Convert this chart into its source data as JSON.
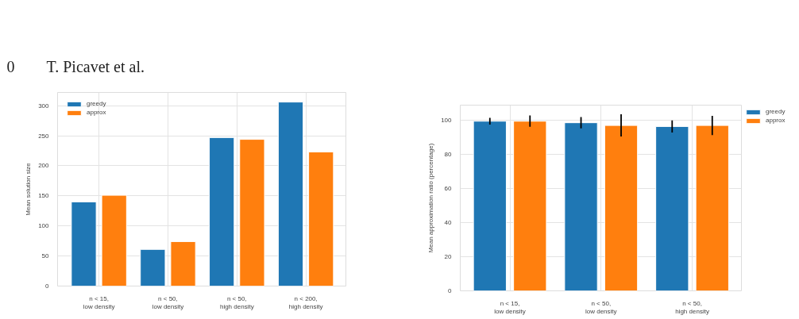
{
  "chart_data": [
    {
      "type": "bar",
      "annotations": [
        "0        T. Picavet et al."
      ],
      "ylabel": "Mean solution size",
      "categories": [
        "n < 15,\nlow density",
        "n < 50,\nlow density",
        "n < 50,\nhigh density",
        "n < 200,\nhigh density"
      ],
      "series": [
        {
          "name": "greedy",
          "color": "#1f77b4",
          "values": [
            140,
            61,
            247,
            306
          ]
        },
        {
          "name": "approx",
          "color": "#ff7f0e",
          "values": [
            151,
            74,
            244,
            223
          ]
        }
      ],
      "ylim": [
        0,
        322
      ],
      "yticks": [
        0,
        50,
        100,
        150,
        200,
        250,
        300
      ],
      "grid": true,
      "legend": "top left"
    },
    {
      "type": "bar",
      "ylabel": "Mean approximation ratio (percentage)",
      "categories": [
        "n < 15,\nlow density",
        "n < 50,\nlow density",
        "n < 50,\nhigh density"
      ],
      "series": [
        {
          "name": "greedy",
          "color": "#1f77b4",
          "values": [
            99.4,
            98.5,
            96.3
          ],
          "errors": [
            2,
            3.3,
            3.5
          ]
        },
        {
          "name": "approx",
          "color": "#ff7f0e",
          "values": [
            99.4,
            96.9,
            96.9
          ],
          "errors": [
            3.3,
            6.5,
            5.6
          ]
        }
      ],
      "ylim": [
        0,
        108.8
      ],
      "yticks": [
        0,
        20,
        40,
        60,
        80,
        100
      ],
      "grid": true,
      "legend": "right"
    }
  ]
}
